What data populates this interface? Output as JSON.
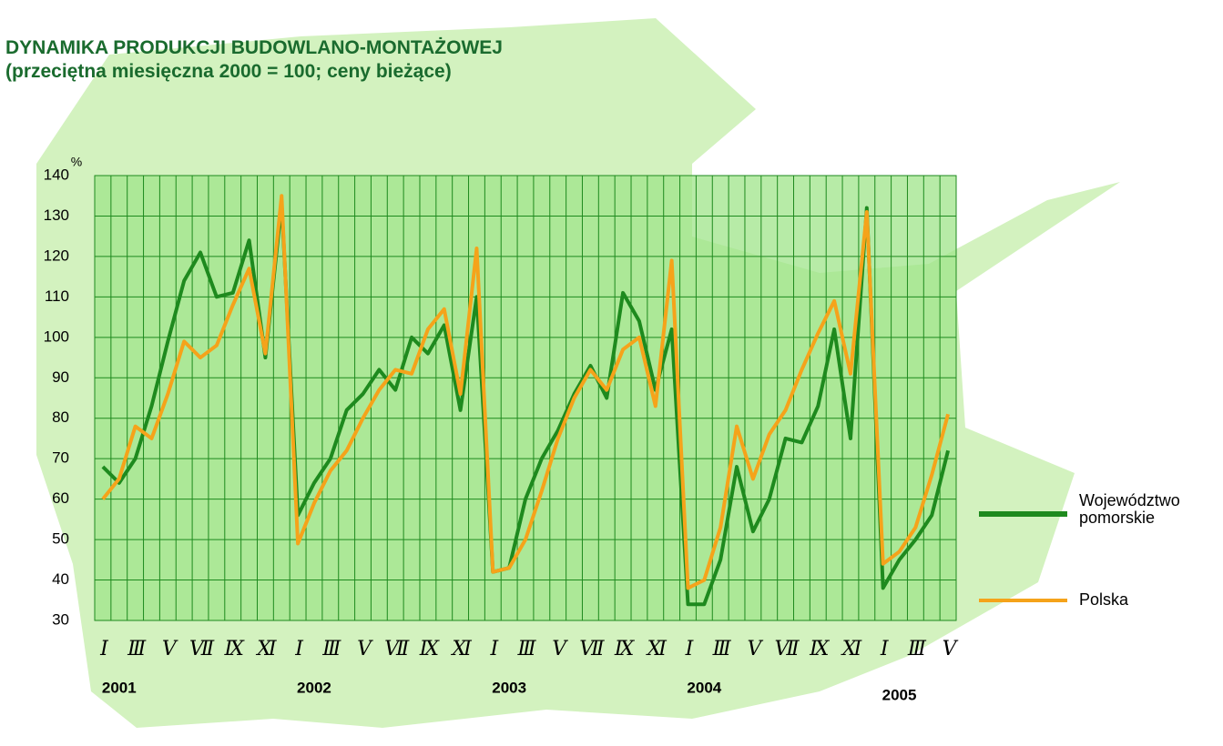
{
  "chart_data": {
    "type": "line",
    "title": "DYNAMIKA PRODUKCJI BUDOWLANO-MONTAŻOWEJ",
    "subtitle": "(przeciętna miesięczna 2000 = 100; ceny bieżące)",
    "y_label": "%",
    "categories": [
      "I",
      null,
      "III",
      null,
      "V",
      null,
      "VII",
      null,
      "IX",
      null,
      "XI",
      null,
      "I",
      null,
      "III",
      null,
      "V",
      null,
      "VII",
      null,
      "IX",
      null,
      "XI",
      null,
      "I",
      null,
      "III",
      null,
      "V",
      null,
      "VII",
      null,
      "IX",
      null,
      "XI",
      null,
      "I",
      null,
      "III",
      null,
      "V",
      null,
      "VII",
      null,
      "IX",
      null,
      "XI",
      null,
      "I",
      null,
      "III",
      null,
      "V"
    ],
    "years": [
      "2001",
      "2002",
      "2003",
      "2004",
      "2005"
    ],
    "series": [
      {
        "name": "Województwo pomorskie",
        "color": "#1e8a1e",
        "values": [
          68,
          64,
          70,
          83,
          99,
          114,
          121,
          110,
          111,
          124,
          95,
          133,
          56,
          64,
          70,
          82,
          86,
          92,
          87,
          100,
          96,
          103,
          82,
          110,
          42,
          43,
          60,
          70,
          77,
          86,
          93,
          85,
          111,
          104,
          87,
          102,
          34,
          34,
          45,
          68,
          52,
          60,
          75,
          74,
          83,
          102,
          75,
          132,
          38,
          45,
          50,
          56,
          72
        ]
      },
      {
        "name": "Polska",
        "color": "#f5a31a",
        "values": [
          60,
          65,
          78,
          75,
          86,
          99,
          95,
          98,
          108,
          117,
          96,
          135,
          49,
          59,
          67,
          72,
          80,
          87,
          92,
          91,
          102,
          107,
          86,
          122,
          42,
          43,
          50,
          62,
          75,
          85,
          92,
          87,
          97,
          100,
          83,
          119,
          38,
          40,
          53,
          78,
          65,
          76,
          82,
          92,
          101,
          109,
          91,
          131,
          44,
          47,
          53,
          66,
          81
        ]
      }
    ],
    "ylim": [
      30,
      140
    ],
    "yticks": [
      30,
      40,
      50,
      60,
      70,
      80,
      90,
      100,
      110,
      120,
      130,
      140
    ],
    "grid": true
  }
}
